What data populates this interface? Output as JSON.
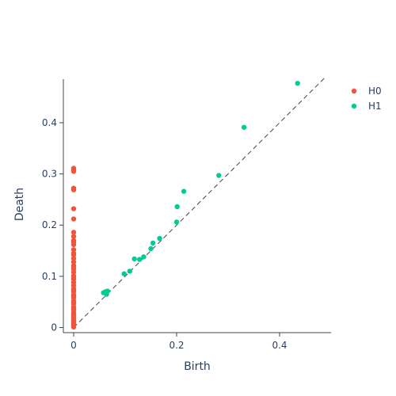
{
  "chart_data": {
    "type": "scatter",
    "title": "",
    "xlabel": "Birth",
    "ylabel": "Death",
    "xlim": [
      -0.02,
      0.5
    ],
    "ylim": [
      -0.01,
      0.485
    ],
    "x_ticks": [
      0,
      0.2,
      0.4
    ],
    "x_tick_labels": [
      "0",
      "0.2",
      "0.4"
    ],
    "y_ticks": [
      0,
      0.1,
      0.2,
      0.3,
      0.4
    ],
    "y_tick_labels": [
      "0",
      "0.1",
      "0.2",
      "0.3",
      "0.4"
    ],
    "grid": false,
    "legend_position": "top-right",
    "diagonal": {
      "style": "dashed",
      "color": "#444444",
      "from": [
        0,
        0
      ],
      "to": [
        0.488,
        0.488
      ]
    },
    "series": [
      {
        "name": "H0",
        "color": "#ef553b",
        "x": [
          0,
          0,
          0,
          0,
          0,
          0,
          0,
          0,
          0,
          0,
          0,
          0,
          0,
          0,
          0,
          0,
          0,
          0,
          0,
          0,
          0,
          0,
          0,
          0,
          0,
          0,
          0,
          0,
          0,
          0,
          0,
          0,
          0,
          0,
          0,
          0,
          0,
          0,
          0,
          0,
          0,
          0,
          0,
          0,
          0,
          0,
          0,
          0,
          0,
          0,
          0,
          0
        ],
        "y": [
          0.311,
          0.307,
          0.305,
          0.272,
          0.269,
          0.232,
          0.212,
          0.186,
          0.178,
          0.17,
          0.162,
          0.152,
          0.142,
          0.135,
          0.128,
          0.121,
          0.114,
          0.108,
          0.101,
          0.094,
          0.082,
          0.076,
          0.07,
          0.064,
          0.058,
          0.052,
          0.046,
          0.04,
          0.034,
          0.029,
          0.024,
          0.019,
          0.014,
          0.01,
          0.006,
          0.003,
          0.001,
          0.167,
          0.145,
          0.118,
          0.097,
          0.088,
          0.072,
          0.061,
          0.049,
          0.037,
          0.026,
          0.016,
          0.008,
          0.004,
          0.012,
          0.021
        ]
      },
      {
        "name": "H1",
        "color": "#00cc96",
        "x": [
          0.058,
          0.062,
          0.064,
          0.066,
          0.098,
          0.109,
          0.118,
          0.128,
          0.136,
          0.15,
          0.154,
          0.167,
          0.2,
          0.201,
          0.214,
          0.282,
          0.331,
          0.435
        ],
        "y": [
          0.068,
          0.07,
          0.065,
          0.071,
          0.105,
          0.11,
          0.134,
          0.133,
          0.138,
          0.154,
          0.165,
          0.174,
          0.206,
          0.236,
          0.266,
          0.297,
          0.391,
          0.477
        ]
      }
    ]
  }
}
